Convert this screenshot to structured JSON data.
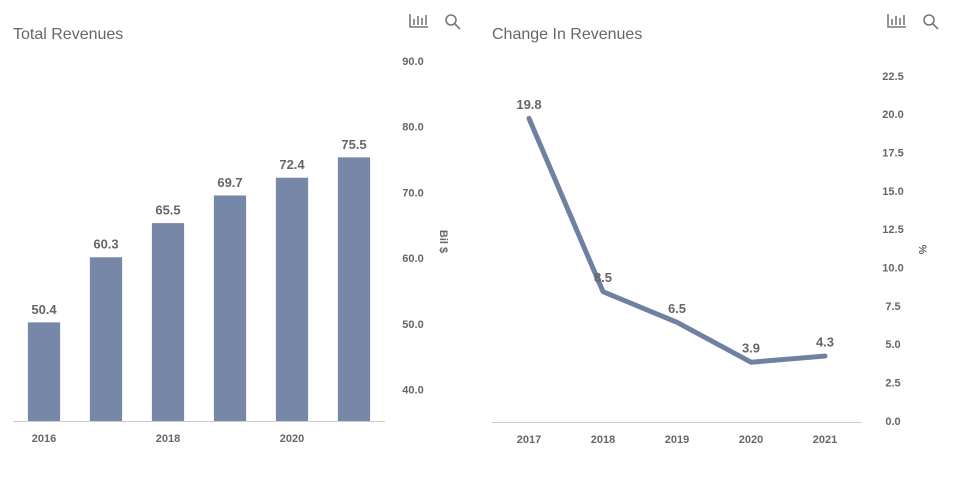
{
  "chart_data": [
    {
      "type": "bar",
      "title": "Total Revenues",
      "y_label": "Bil $",
      "y_axis_position": "right",
      "categories": [
        "2016",
        null,
        "2018",
        null,
        "2020",
        null
      ],
      "values": [
        50.4,
        60.3,
        65.5,
        69.7,
        72.4,
        75.5
      ],
      "color": "#7687a8",
      "ylim": [
        35.4,
        90
      ],
      "yticks": [
        {
          "value": 40,
          "label": "40.0"
        },
        {
          "value": 50,
          "label": "50.0"
        },
        {
          "value": 60,
          "label": "60.0"
        },
        {
          "value": 70,
          "label": "70.0"
        },
        {
          "value": 80,
          "label": "80.0"
        },
        {
          "value": 90,
          "label": "90.0"
        }
      ]
    },
    {
      "type": "line",
      "title": "Change In Revenues",
      "y_label": "%",
      "y_axis_position": "right",
      "categories": [
        "2017",
        "2018",
        "2019",
        "2020",
        "2021"
      ],
      "values": [
        19.8,
        8.5,
        6.5,
        3.9,
        4.3
      ],
      "color": "#6f80a3",
      "ylim": [
        0,
        22.5
      ],
      "yticks": [
        {
          "value": 0,
          "label": "0.0"
        },
        {
          "value": 2.5,
          "label": "2.5"
        },
        {
          "value": 5,
          "label": "5.0"
        },
        {
          "value": 7.5,
          "label": "7.5"
        },
        {
          "value": 10,
          "label": "10.0"
        },
        {
          "value": 12.5,
          "label": "12.5"
        },
        {
          "value": 15,
          "label": "15.0"
        },
        {
          "value": 17.5,
          "label": "17.5"
        },
        {
          "value": 20,
          "label": "20.0"
        },
        {
          "value": 22.5,
          "label": "22.5"
        }
      ]
    }
  ]
}
